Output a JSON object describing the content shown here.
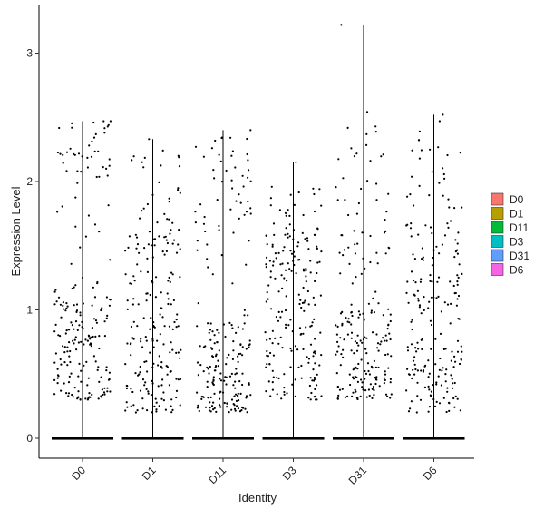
{
  "chart_data": {
    "type": "scatter",
    "subtype": "violin-jitter",
    "title": "",
    "xlabel": "Identity",
    "ylabel": "Expression Level",
    "ylim": [
      -0.15,
      3.35
    ],
    "yticks": [
      0,
      1,
      2,
      3
    ],
    "grid": false,
    "legend_position": "right",
    "categories": [
      "D0",
      "D1",
      "D11",
      "D3",
      "D31",
      "D6"
    ],
    "series": [
      {
        "name": "D0",
        "color": "#F8766D",
        "max": 2.47,
        "upper_band": [
          2.0,
          2.47
        ],
        "dense_band": [
          0.3,
          1.1
        ]
      },
      {
        "name": "D1",
        "color": "#B79F00",
        "max": 2.33,
        "upper_band": [
          1.5,
          2.25
        ],
        "dense_band": [
          0.2,
          1.3
        ]
      },
      {
        "name": "D11",
        "color": "#00BA38",
        "max": 2.4,
        "upper_band": [
          1.6,
          2.35
        ],
        "dense_band": [
          0.2,
          0.9
        ]
      },
      {
        "name": "D3",
        "color": "#00BFC4",
        "max": 2.15,
        "upper_band": [
          1.3,
          2.0
        ],
        "dense_band": [
          0.3,
          1.4
        ]
      },
      {
        "name": "D31",
        "color": "#619CFF",
        "max": 3.22,
        "upper_band": [
          1.4,
          2.6
        ],
        "dense_band": [
          0.3,
          1.0
        ]
      },
      {
        "name": "D6",
        "color": "#F564E3",
        "max": 2.52,
        "upper_band": [
          1.4,
          2.5
        ],
        "dense_band": [
          0.2,
          1.3
        ]
      }
    ]
  }
}
